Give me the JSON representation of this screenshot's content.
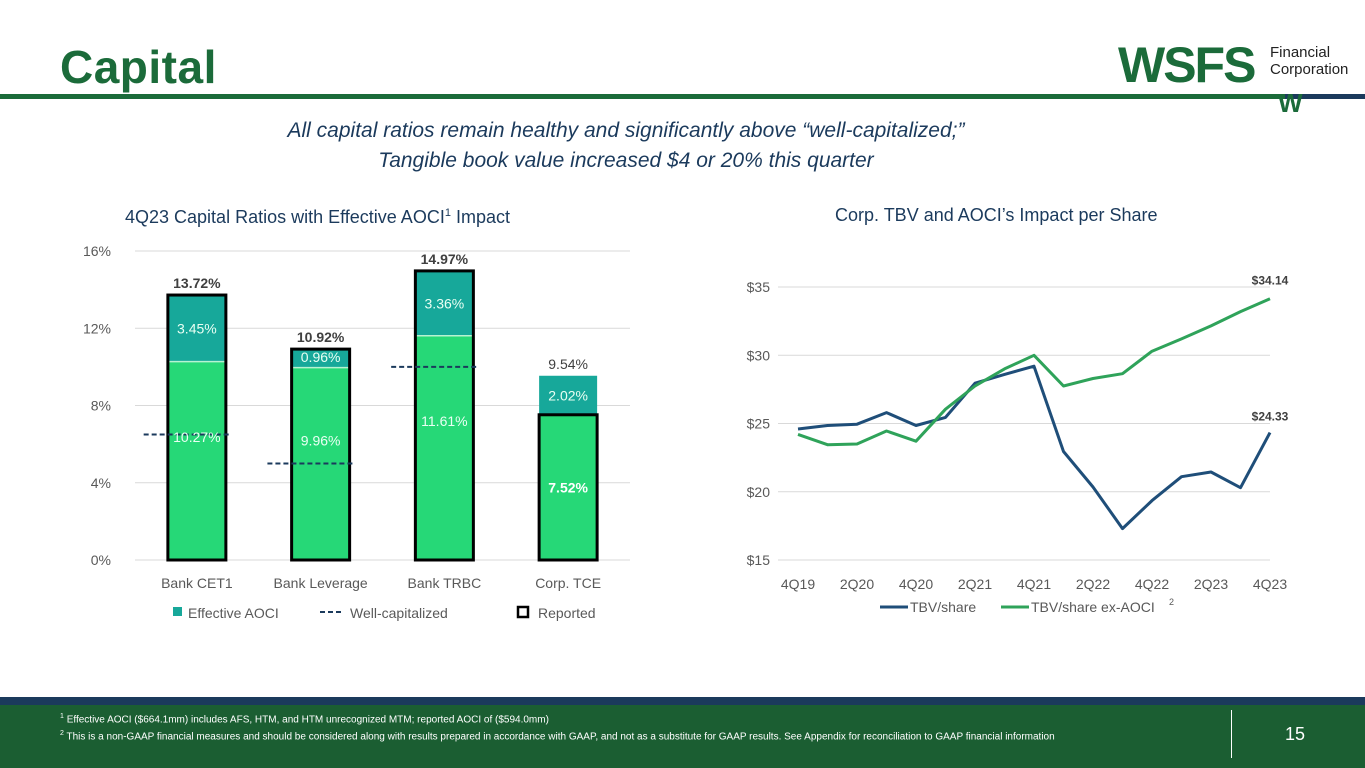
{
  "page": {
    "title": "Capital",
    "logo": {
      "brand": "WSFS",
      "line1": "Financial",
      "line2": "Corporation",
      "mark": "W"
    },
    "headline": [
      "All capital ratios remain healthy and significantly above “well-capitalized;”",
      "Tangible book value increased $4 or 20% this quarter"
    ],
    "footnotes": {
      "note1_marker": "1",
      "note1": "Effective AOCI ($664.1mm) includes AFS, HTM, and HTM unrecognized MTM; reported AOCI of ($594.0mm)",
      "note2_marker": "2",
      "note2": "This is a non-GAAP financial measures and should be considered along with results prepared in accordance with GAAP, and not as a substitute for GAAP results.  See Appendix for reconciliation to GAAP financial information"
    },
    "page_number": "15",
    "colors": {
      "brand_green": "#1b6b3a",
      "navy": "#1b3a5c",
      "bar_green": "#26d877",
      "aoci_teal": "#17a89a",
      "line_green": "#2fa35a"
    }
  },
  "chart_data": [
    {
      "type": "bar",
      "title_main": "4Q23 Capital Ratios with Effective AOCI",
      "title_sup": "1",
      "title_end": " Impact",
      "categories": [
        "Bank CET1",
        "Bank Leverage",
        "Bank TRBC",
        "Corp. TCE"
      ],
      "series": [
        {
          "values": [
            10.27,
            9.96,
            11.61,
            7.52
          ],
          "labels": [
            "10.27%",
            "9.96%",
            "11.61%",
            "7.52%"
          ]
        },
        {
          "name": "Effective AOCI",
          "values": [
            3.45,
            0.96,
            3.36,
            2.02
          ],
          "labels": [
            "3.45%",
            "0.96%",
            "3.36%",
            "2.02%"
          ]
        }
      ],
      "totals": [
        13.72,
        10.92,
        14.97,
        9.54
      ],
      "total_labels": [
        "13.72%",
        "10.92%",
        "14.97%",
        "9.54%"
      ],
      "reported": [
        13.72,
        10.92,
        14.97,
        7.52
      ],
      "well_capitalized": [
        6.5,
        5.0,
        10.0,
        null
      ],
      "legend": {
        "aoci": "Effective AOCI",
        "well": "Well-capitalized",
        "reported": "Reported"
      },
      "ylim": [
        0,
        16
      ],
      "yticks": [
        0,
        4,
        8,
        12,
        16
      ],
      "ytick_labels": [
        "0%",
        "4%",
        "8%",
        "12%",
        "16%"
      ],
      "legend_position": "bottom",
      "grid": true
    },
    {
      "type": "line",
      "title": "Corp. TBV and AOCI’s Impact per Share",
      "x": [
        "4Q19",
        "1Q20",
        "2Q20",
        "3Q20",
        "4Q20",
        "1Q21",
        "2Q21",
        "3Q21",
        "4Q21",
        "1Q22",
        "2Q22",
        "3Q22",
        "4Q22",
        "1Q23",
        "2Q23",
        "3Q23",
        "4Q23"
      ],
      "xtick_labels": [
        "4Q19",
        "2Q20",
        "4Q20",
        "2Q21",
        "4Q21",
        "2Q22",
        "4Q22",
        "2Q23",
        "4Q23"
      ],
      "series": [
        {
          "name": "TBV/share",
          "color": "#1f4e79",
          "values": [
            24.6,
            24.85,
            24.95,
            25.8,
            24.85,
            25.45,
            27.95,
            28.6,
            29.2,
            22.95,
            20.35,
            17.3,
            19.35,
            21.1,
            21.45,
            20.3,
            24.33
          ]
        },
        {
          "name": "TBV/share ex-AOCI",
          "name_sup": "2",
          "color": "#2fa35a",
          "values": [
            24.2,
            23.45,
            23.5,
            24.45,
            23.7,
            26.05,
            27.75,
            29.0,
            30.0,
            27.75,
            28.3,
            28.65,
            30.3,
            31.2,
            32.15,
            33.2,
            34.14
          ]
        }
      ],
      "end_labels": [
        "$24.33",
        "$34.14"
      ],
      "ylim": [
        15,
        35
      ],
      "yticks": [
        15,
        20,
        25,
        30,
        35
      ],
      "ytick_labels": [
        "$15",
        "$20",
        "$25",
        "$30",
        "$35"
      ],
      "legend_position": "bottom",
      "grid": true
    }
  ]
}
